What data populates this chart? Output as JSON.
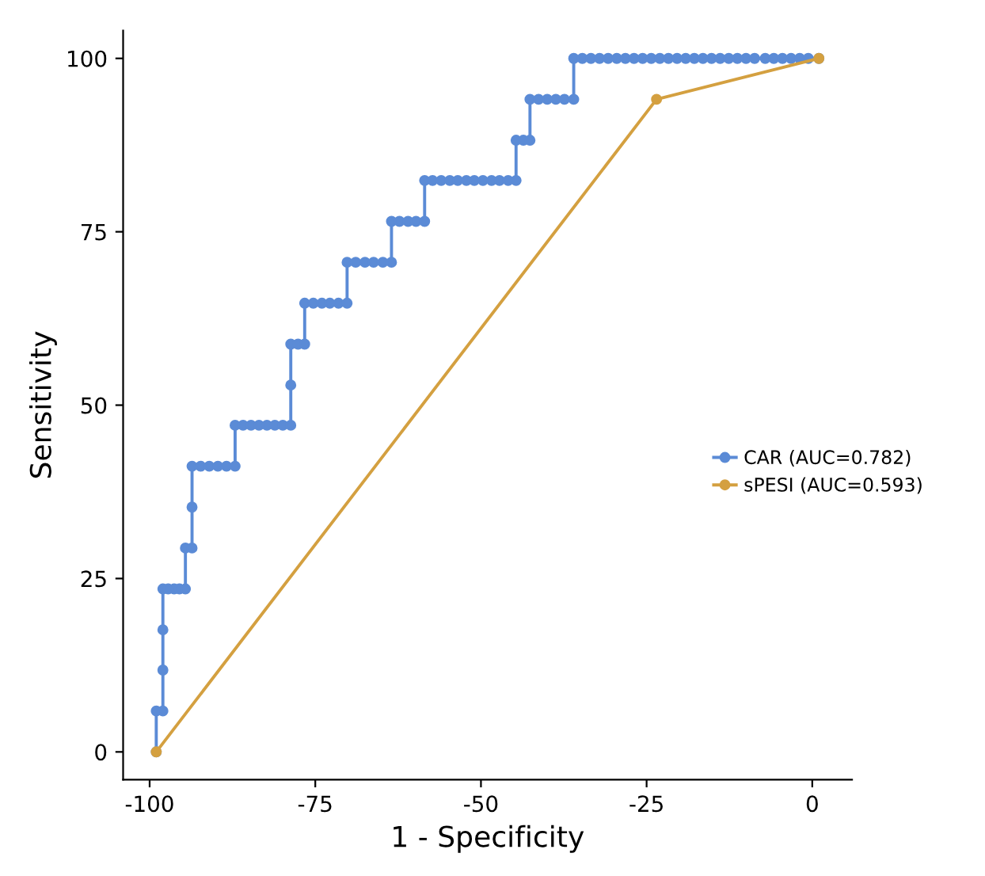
{
  "chart_data": {
    "type": "line",
    "xlabel": "1 - Specificity",
    "ylabel": "Sensitivity",
    "xlim": [
      -104,
      6
    ],
    "ylim": [
      -4,
      104
    ],
    "xticks": [
      -100,
      -75,
      -50,
      -25,
      0
    ],
    "yticks": [
      0,
      25,
      50,
      75,
      100
    ],
    "grid": false,
    "legend": "right",
    "marker": "circle",
    "line_style": "solid",
    "series": [
      {
        "name": "CAR (AUC=0.782)",
        "color": "#5b8bd6",
        "x": [
          -99,
          -99,
          -98,
          -98,
          -98,
          -98,
          -97.2,
          -96.3,
          -95.5,
          -94.6,
          -94.6,
          -93.6,
          -93.6,
          -93.6,
          -92.3,
          -91.0,
          -89.7,
          -88.4,
          -87.1,
          -87.1,
          -85.9,
          -84.7,
          -83.5,
          -82.3,
          -81.1,
          -79.9,
          -78.7,
          -78.7,
          -78.7,
          -77.6,
          -76.6,
          -76.6,
          -75.3,
          -74.0,
          -72.8,
          -71.5,
          -70.2,
          -70.2,
          -68.9,
          -67.5,
          -66.2,
          -64.8,
          -63.5,
          -63.5,
          -62.3,
          -61.0,
          -59.8,
          -58.5,
          -58.5,
          -57.3,
          -56.0,
          -54.7,
          -53.5,
          -52.2,
          -51.0,
          -49.7,
          -48.4,
          -47.2,
          -45.9,
          -44.7,
          -44.7,
          -43.6,
          -42.6,
          -42.6,
          -41.3,
          -40.0,
          -38.7,
          -37.4,
          -36.0,
          -36.0,
          -34.7,
          -33.4,
          -32.1,
          -30.8,
          -29.5,
          -28.2,
          -26.9,
          -25.6,
          -24.3,
          -23.0,
          -21.7,
          -20.4,
          -19.1,
          -17.8,
          -16.5,
          -15.2,
          -13.9,
          -12.6,
          -11.3,
          -10.0,
          -8.7,
          -7.1,
          -5.8,
          -4.5,
          -3.2,
          -1.9,
          -0.6,
          1.0
        ],
        "values": [
          0,
          5.9,
          5.9,
          11.8,
          17.6,
          23.5,
          23.5,
          23.5,
          23.5,
          23.5,
          29.4,
          29.4,
          35.3,
          41.2,
          41.2,
          41.2,
          41.2,
          41.2,
          41.2,
          47.1,
          47.1,
          47.1,
          47.1,
          47.1,
          47.1,
          47.1,
          47.1,
          52.9,
          58.8,
          58.8,
          58.8,
          64.7,
          64.7,
          64.7,
          64.7,
          64.7,
          64.7,
          70.6,
          70.6,
          70.6,
          70.6,
          70.6,
          70.6,
          76.5,
          76.5,
          76.5,
          76.5,
          76.5,
          82.4,
          82.4,
          82.4,
          82.4,
          82.4,
          82.4,
          82.4,
          82.4,
          82.4,
          82.4,
          82.4,
          82.4,
          88.2,
          88.2,
          88.2,
          94.1,
          94.1,
          94.1,
          94.1,
          94.1,
          94.1,
          100,
          100,
          100,
          100,
          100,
          100,
          100,
          100,
          100,
          100,
          100,
          100,
          100,
          100,
          100,
          100,
          100,
          100,
          100,
          100,
          100,
          100,
          100,
          100,
          100,
          100,
          100,
          100,
          100
        ]
      },
      {
        "name": "sPESI (AUC=0.593)",
        "color": "#d4a040",
        "x": [
          -99,
          -23.5,
          1.0
        ],
        "values": [
          0,
          94.1,
          100
        ]
      }
    ]
  }
}
